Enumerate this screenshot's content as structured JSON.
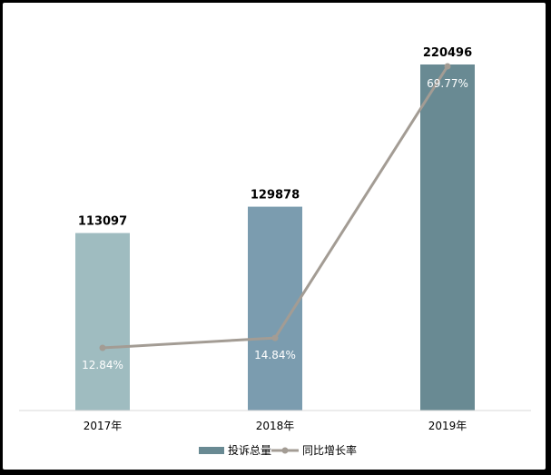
{
  "chart_data": {
    "type": "bar",
    "categories": [
      "2017年",
      "2018年",
      "2019年"
    ],
    "series": [
      {
        "name": "投诉总量",
        "type": "bar",
        "values": [
          113097,
          129878,
          220496
        ],
        "colors": [
          "#9fbcc0",
          "#7b9caf",
          "#698a93"
        ]
      },
      {
        "name": "同比增长率",
        "type": "line",
        "values": [
          12.84,
          14.84,
          69.77
        ],
        "labels": [
          "12.84%",
          "14.84%",
          "69.77%"
        ],
        "color": "#a39c94"
      }
    ],
    "xlabel": "",
    "ylabel": "",
    "legend": "bottom",
    "grid": false
  }
}
